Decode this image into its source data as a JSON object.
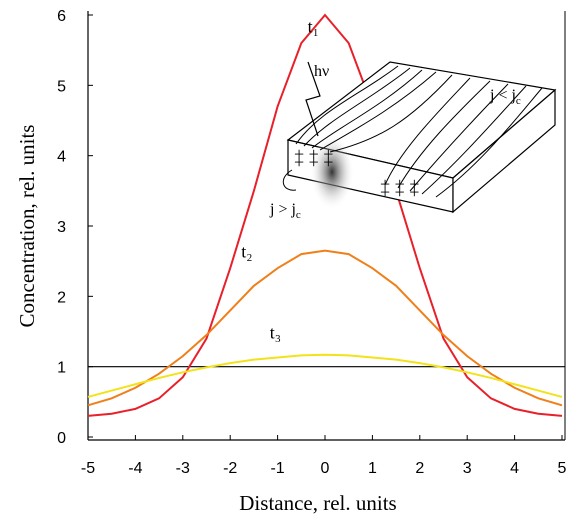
{
  "chart_data": {
    "type": "line",
    "x_label": "Distance, rel. units",
    "y_label": "Concentration, rel. units",
    "x": [
      -5,
      -4.5,
      -4,
      -3.5,
      -3,
      -2.5,
      -2,
      -1.5,
      -1,
      -0.5,
      0,
      0.5,
      1,
      1.5,
      2,
      2.5,
      3,
      3.5,
      4,
      4.5,
      5
    ],
    "series": [
      {
        "name": "t₁",
        "color": "#e8202a",
        "values": [
          0.3,
          0.33,
          0.4,
          0.55,
          0.85,
          1.4,
          2.4,
          3.5,
          4.7,
          5.6,
          6,
          5.6,
          4.7,
          3.5,
          2.4,
          1.4,
          0.85,
          0.55,
          0.4,
          0.33,
          0.3
        ]
      },
      {
        "name": "t₂",
        "color": "#f07f1a",
        "values": [
          0.45,
          0.55,
          0.7,
          0.9,
          1.15,
          1.45,
          1.8,
          2.15,
          2.4,
          2.6,
          2.65,
          2.6,
          2.4,
          2.15,
          1.8,
          1.45,
          1.15,
          0.9,
          0.7,
          0.55,
          0.45
        ]
      },
      {
        "name": "t₃",
        "color": "#f2e21a",
        "values": [
          0.57,
          0.66,
          0.75,
          0.84,
          0.92,
          0.99,
          1.05,
          1.1,
          1.13,
          1.16,
          1.17,
          1.16,
          1.13,
          1.1,
          1.05,
          0.99,
          0.92,
          0.84,
          0.75,
          0.66,
          0.57
        ]
      }
    ],
    "reference_line": 1,
    "xlim": [
      -5,
      5
    ],
    "ylim": [
      0,
      6
    ],
    "xticks": [
      -5,
      -4,
      -3,
      -2,
      -1,
      0,
      1,
      2,
      3,
      4,
      5
    ],
    "yticks": [
      0,
      1,
      2,
      3,
      4,
      5,
      6
    ],
    "inset": {
      "photon": "hν",
      "low": {
        "text": "j < j",
        "sub": "c"
      },
      "high": {
        "text": "j > j",
        "sub": "c"
      }
    }
  }
}
